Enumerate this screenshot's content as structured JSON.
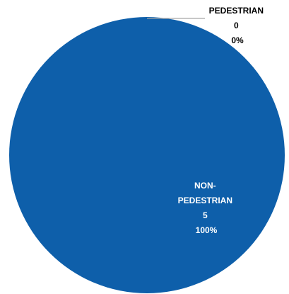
{
  "chart_data": {
    "type": "pie",
    "title": "",
    "colors": {
      "NON-PEDESTRIAN": "#0E5FAA",
      "PEDESTRIAN": "#A6A6A6"
    },
    "slices": [
      {
        "name": "PEDESTRIAN",
        "value": 0,
        "percent": "0%",
        "label_lines": [
          "PEDESTRIAN",
          "0",
          "0%"
        ]
      },
      {
        "name": "NON-PEDESTRIAN",
        "value": 5,
        "percent": "100%",
        "label_lines": [
          "NON-",
          "PEDESTRIAN",
          "5",
          "100%"
        ]
      }
    ]
  }
}
